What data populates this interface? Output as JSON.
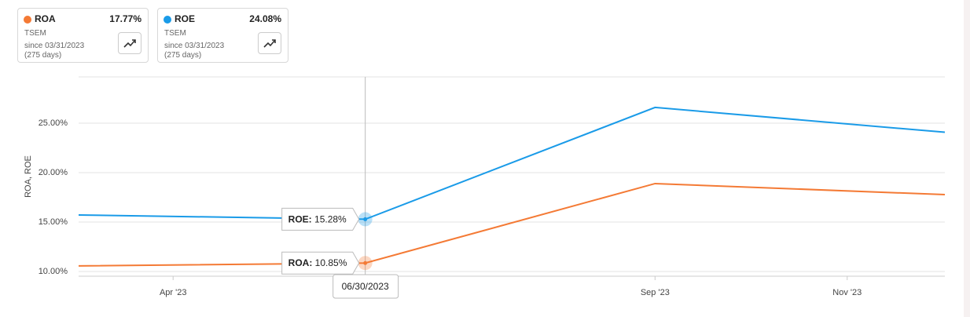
{
  "chart_data": {
    "type": "line",
    "y_label": "ROA, ROE",
    "x": [
      "2023-03-31",
      "2023-06-30",
      "2023-09-30",
      "2023-12-31"
    ],
    "xlim": [
      "2023-03-31",
      "2023-12-31"
    ],
    "xticks": [
      {
        "value": "2023-04-30",
        "label": "Apr '23"
      },
      {
        "value": "2023-09-30",
        "label": "Sep '23"
      },
      {
        "value": "2023-11-30",
        "label": "Nov '23"
      }
    ],
    "ylim": [
      9.52,
      29.68
    ],
    "yticks": [
      {
        "value": 10,
        "label": "10.00%"
      },
      {
        "value": 15,
        "label": "15.00%"
      },
      {
        "value": 20,
        "label": "20.00%"
      },
      {
        "value": 25,
        "label": "25.00%"
      }
    ],
    "grid": true,
    "tooltip_date": "06/30/2023",
    "series": [
      {
        "name": "ROA",
        "color": "#f47a35",
        "values": [
          10.56,
          10.85,
          18.89,
          17.77
        ],
        "value_labels": [
          null,
          "10.85%",
          null,
          null
        ],
        "latest": "17.77%",
        "ticker": "TSEM",
        "since": "since 03/31/2023",
        "days": "(275 days)"
      },
      {
        "name": "ROE",
        "color": "#1a9be8",
        "values": [
          15.71,
          15.28,
          26.59,
          24.08
        ],
        "value_labels": [
          null,
          "15.28%",
          null,
          null
        ],
        "latest": "24.08%",
        "ticker": "TSEM",
        "since": "since 03/31/2023",
        "days": "(275 days)"
      }
    ]
  }
}
